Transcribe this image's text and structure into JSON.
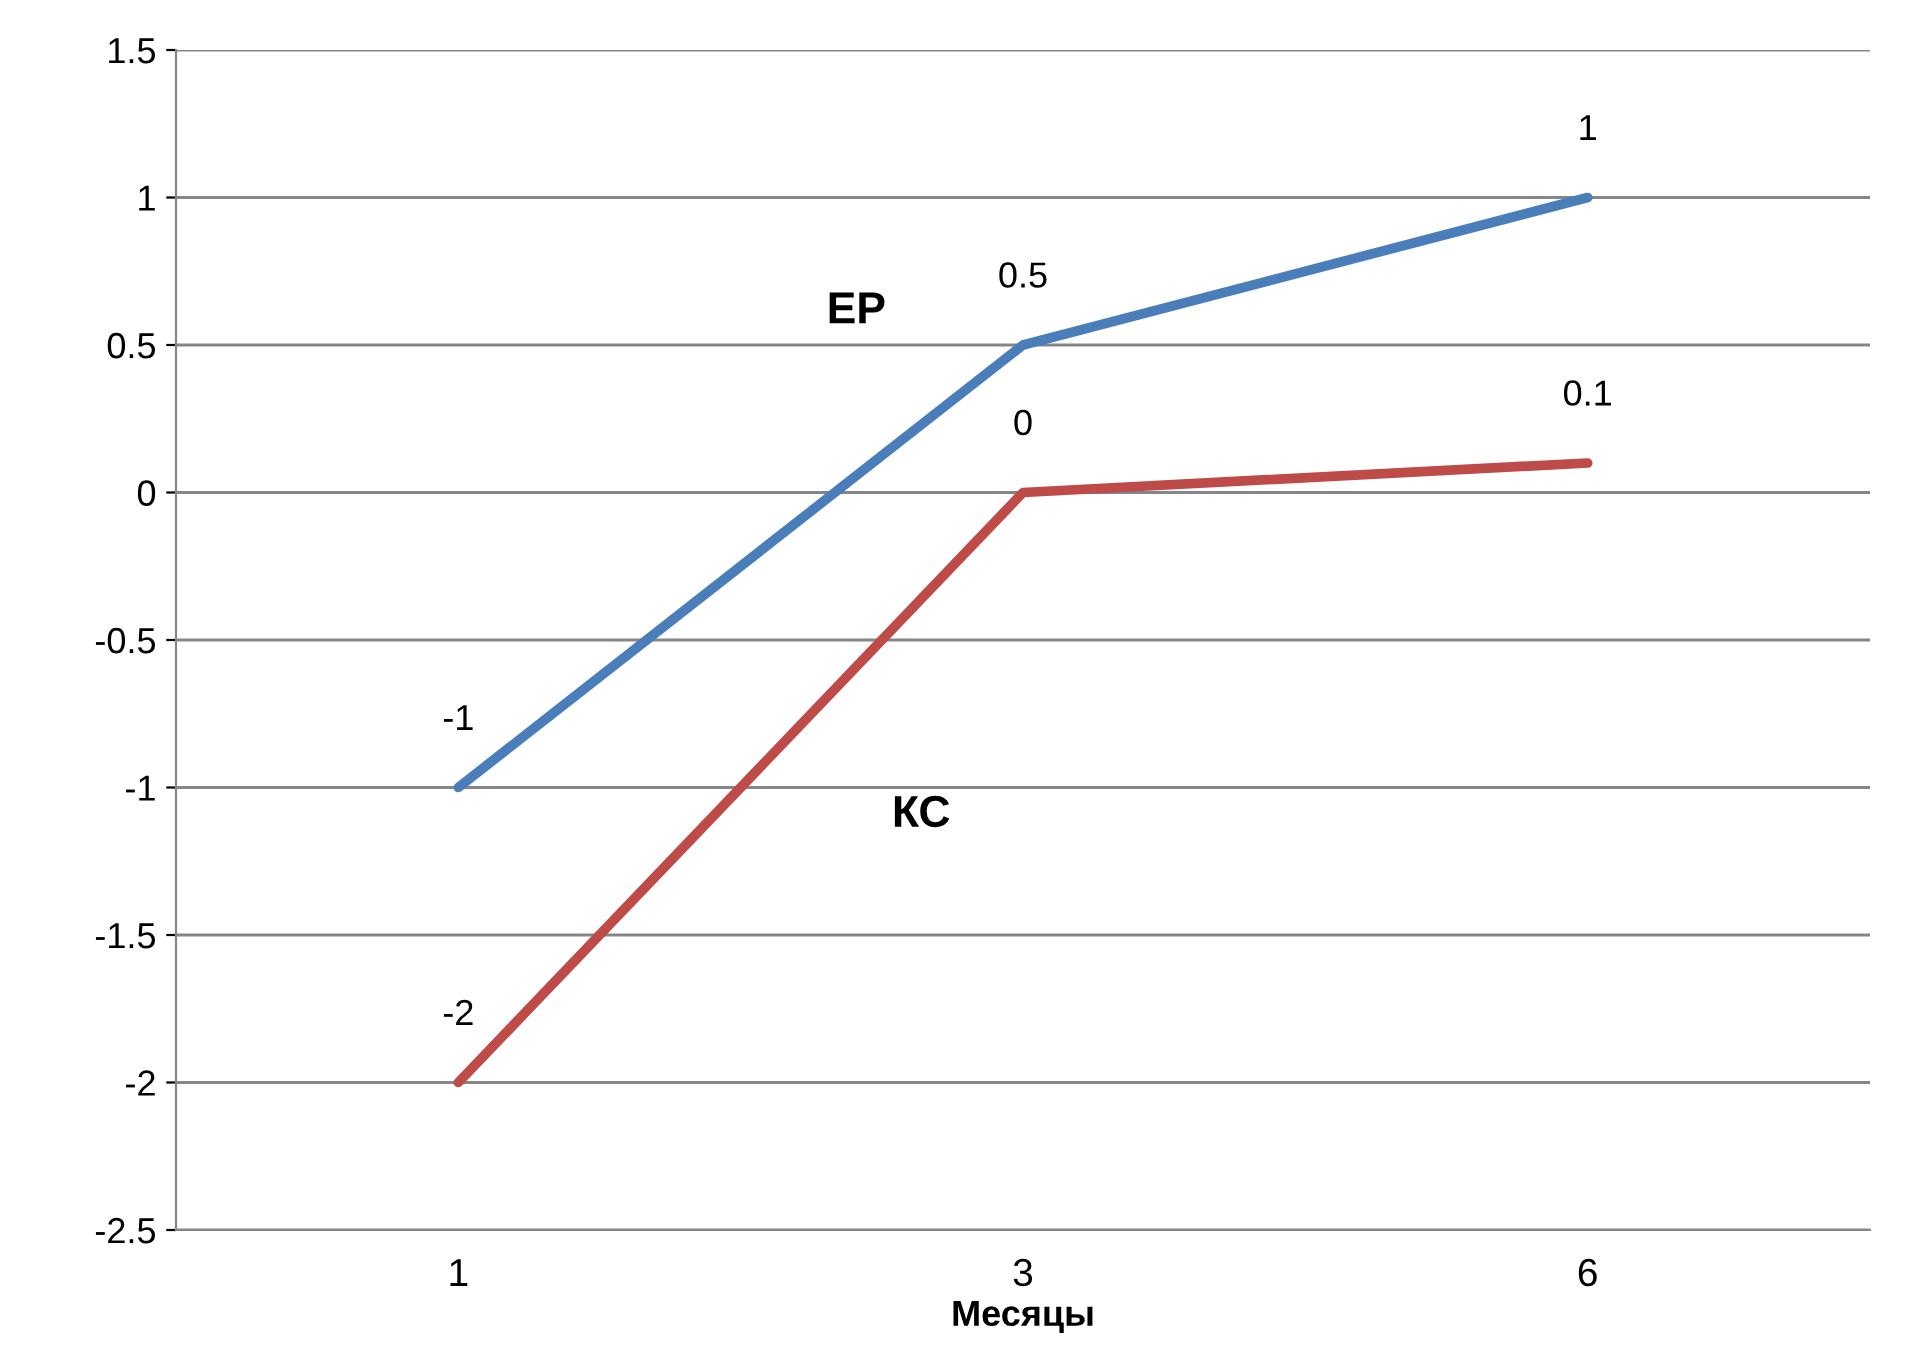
{
  "chart_data": {
    "type": "line",
    "xlabel": "Месяцы",
    "categories": [
      "1",
      "3",
      "6"
    ],
    "series": [
      {
        "name": "ЕР",
        "color": "#4a7ebb",
        "values": [
          -1,
          0.5,
          1
        ]
      },
      {
        "name": "КС",
        "color": "#be4b48",
        "values": [
          -2,
          0,
          0.1
        ]
      }
    ],
    "ylim": [
      -2.5,
      1.5
    ],
    "yticks": [
      -2.5,
      -2,
      -1.5,
      -1,
      -0.5,
      0,
      0.5,
      1,
      1.5
    ],
    "grid": "y",
    "data_labels": true,
    "marker": "none",
    "line_style": "solid"
  }
}
